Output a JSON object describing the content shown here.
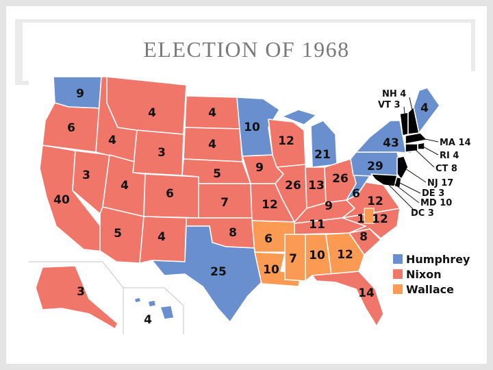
{
  "title": "ELECTION OF 1968",
  "colors": {
    "Humphrey": "#6a8fce",
    "Nixon": "#ef7668",
    "Wallace": "#fb9a52",
    "background": "#e4e4e4",
    "border": "#ffffff"
  },
  "legend": [
    {
      "name": "Humphrey",
      "color": "#6a8fce"
    },
    {
      "name": "Nixon",
      "color": "#ef7668"
    },
    {
      "name": "Wallace",
      "color": "#fb9a52"
    }
  ],
  "states": {
    "WA": {
      "ev": "9",
      "winner": "Humphrey"
    },
    "OR": {
      "ev": "6",
      "winner": "Nixon"
    },
    "CA": {
      "ev": "40",
      "winner": "Nixon"
    },
    "NV": {
      "ev": "3",
      "winner": "Nixon"
    },
    "ID": {
      "ev": "4",
      "winner": "Nixon"
    },
    "MT": {
      "ev": "4",
      "winner": "Nixon"
    },
    "WY": {
      "ev": "3",
      "winner": "Nixon"
    },
    "UT": {
      "ev": "4",
      "winner": "Nixon"
    },
    "CO": {
      "ev": "6",
      "winner": "Nixon"
    },
    "AZ": {
      "ev": "5",
      "winner": "Nixon"
    },
    "NM": {
      "ev": "4",
      "winner": "Nixon"
    },
    "ND": {
      "ev": "4",
      "winner": "Nixon"
    },
    "SD": {
      "ev": "4",
      "winner": "Nixon"
    },
    "NE": {
      "ev": "5",
      "winner": "Nixon"
    },
    "KS": {
      "ev": "7",
      "winner": "Nixon"
    },
    "OK": {
      "ev": "8",
      "winner": "Nixon"
    },
    "TX": {
      "ev": "25",
      "winner": "Humphrey"
    },
    "MN": {
      "ev": "10",
      "winner": "Humphrey"
    },
    "IA": {
      "ev": "9",
      "winner": "Nixon"
    },
    "MO": {
      "ev": "12",
      "winner": "Nixon"
    },
    "AR": {
      "ev": "6",
      "winner": "Wallace"
    },
    "LA": {
      "ev": "10",
      "winner": "Wallace"
    },
    "WI": {
      "ev": "12",
      "winner": "Nixon"
    },
    "IL": {
      "ev": "26",
      "winner": "Nixon"
    },
    "MI": {
      "ev": "21",
      "winner": "Humphrey"
    },
    "IN": {
      "ev": "13",
      "winner": "Nixon"
    },
    "OH": {
      "ev": "26",
      "winner": "Nixon"
    },
    "KY": {
      "ev": "9",
      "winner": "Nixon"
    },
    "TN": {
      "ev": "11",
      "winner": "Nixon"
    },
    "MS": {
      "ev": "7",
      "winner": "Wallace"
    },
    "AL": {
      "ev": "10",
      "winner": "Wallace"
    },
    "GA": {
      "ev": "12",
      "winner": "Wallace"
    },
    "FL": {
      "ev": "14",
      "winner": "Nixon"
    },
    "SC": {
      "ev": "8",
      "winner": "Nixon"
    },
    "NC": {
      "ev": "12",
      "winner": "Nixon"
    },
    "NC_faithless": {
      "ev": "1",
      "winner": "Wallace"
    },
    "VA": {
      "ev": "12",
      "winner": "Nixon"
    },
    "WV": {
      "ev": "6",
      "winner": "Humphrey"
    },
    "PA": {
      "ev": "29",
      "winner": "Humphrey"
    },
    "NY": {
      "ev": "43",
      "winner": "Humphrey"
    },
    "ME": {
      "ev": "4",
      "winner": "Humphrey"
    },
    "AK": {
      "ev": "3",
      "winner": "Nixon"
    },
    "HI": {
      "ev": "4",
      "winner": "Humphrey"
    }
  },
  "callouts": {
    "NH": "NH 4",
    "VT": "VT 3",
    "MA": "MA 14",
    "RI": "RI 4",
    "CT": "CT 8",
    "NJ": "NJ 17",
    "DE": "DE 3",
    "MD": "MD 10",
    "DC": "DC 3"
  }
}
